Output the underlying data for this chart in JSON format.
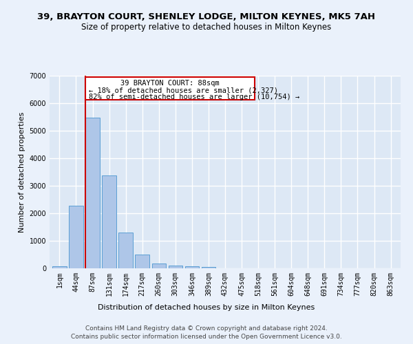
{
  "title": "39, BRAYTON COURT, SHENLEY LODGE, MILTON KEYNES, MK5 7AH",
  "subtitle": "Size of property relative to detached houses in Milton Keynes",
  "xlabel": "Distribution of detached houses by size in Milton Keynes",
  "ylabel": "Number of detached properties",
  "footer_line1": "Contains HM Land Registry data © Crown copyright and database right 2024.",
  "footer_line2": "Contains public sector information licensed under the Open Government Licence v3.0.",
  "bar_labels": [
    "1sqm",
    "44sqm",
    "87sqm",
    "131sqm",
    "174sqm",
    "217sqm",
    "260sqm",
    "303sqm",
    "346sqm",
    "389sqm",
    "432sqm",
    "475sqm",
    "518sqm",
    "561sqm",
    "604sqm",
    "648sqm",
    "691sqm",
    "734sqm",
    "777sqm",
    "820sqm",
    "863sqm"
  ],
  "bar_values": [
    70,
    2280,
    5480,
    3380,
    1310,
    500,
    175,
    90,
    65,
    50,
    0,
    0,
    0,
    0,
    0,
    0,
    0,
    0,
    0,
    0,
    0
  ],
  "bar_color": "#aec6e8",
  "bar_edgecolor": "#5a9fd4",
  "property_label": "39 BRAYTON COURT: 88sqm",
  "annotation_line1": "← 18% of detached houses are smaller (2,327)",
  "annotation_line2": "82% of semi-detached houses are larger (10,754) →",
  "vline_x_index": 2,
  "vline_color": "#cc0000",
  "box_color": "#cc0000",
  "ylim": [
    0,
    7000
  ],
  "yticks": [
    0,
    1000,
    2000,
    3000,
    4000,
    5000,
    6000,
    7000
  ],
  "bg_color": "#dde8f5",
  "fig_bg_color": "#eaf1fb",
  "grid_color": "#ffffff",
  "title_fontsize": 9.5,
  "subtitle_fontsize": 8.5,
  "axis_label_fontsize": 8,
  "tick_fontsize": 7,
  "annotation_fontsize": 7.5,
  "footer_fontsize": 6.5
}
